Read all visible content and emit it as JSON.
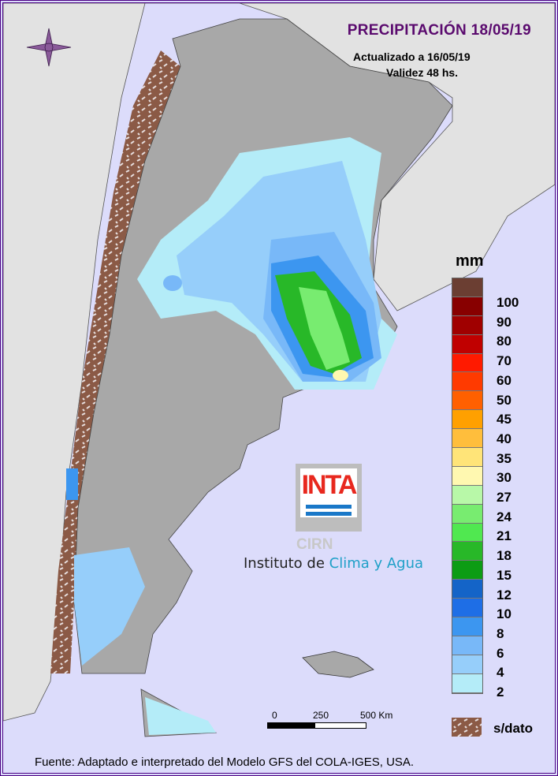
{
  "header": {
    "title": "PRECIPITACIÓN 18/05/19",
    "updated": "Actualizado a 16/05/19",
    "validity": "Validez 48 hs."
  },
  "legend": {
    "unit": "mm",
    "colors": [
      "#6b3e32",
      "#880000",
      "#a00000",
      "#c00000",
      "#ff1a00",
      "#ff3a00",
      "#ff6000",
      "#ffa000",
      "#ffbe3c",
      "#ffe478",
      "#fff8b0",
      "#b8f8a8",
      "#78ec70",
      "#50e850",
      "#28b828",
      "#0c9c14",
      "#1464c8",
      "#1e6ee6",
      "#3c96f0",
      "#78b8f8",
      "#96cefa",
      "#b4ecf8"
    ],
    "labels": [
      "100",
      "90",
      "80",
      "70",
      "60",
      "50",
      "45",
      "40",
      "35",
      "30",
      "27",
      "24",
      "21",
      "18",
      "15",
      "12",
      "10",
      "8",
      "6",
      "4",
      "2"
    ],
    "no_data_label": "s/dato",
    "no_data_color": "#8b5a46"
  },
  "scale_bar": {
    "labels": [
      "0",
      "250",
      "500 Km"
    ]
  },
  "logo": {
    "name": "INTA",
    "cirn": "CIRN",
    "institute_prefix": "Instituto de ",
    "institute_highlight": "Clima y Agua"
  },
  "footer": "Fuente: Adaptado e interpretado del Modelo GFS del COLA-IGES, USA.",
  "icons": {
    "compass": "compass-rose-icon"
  }
}
